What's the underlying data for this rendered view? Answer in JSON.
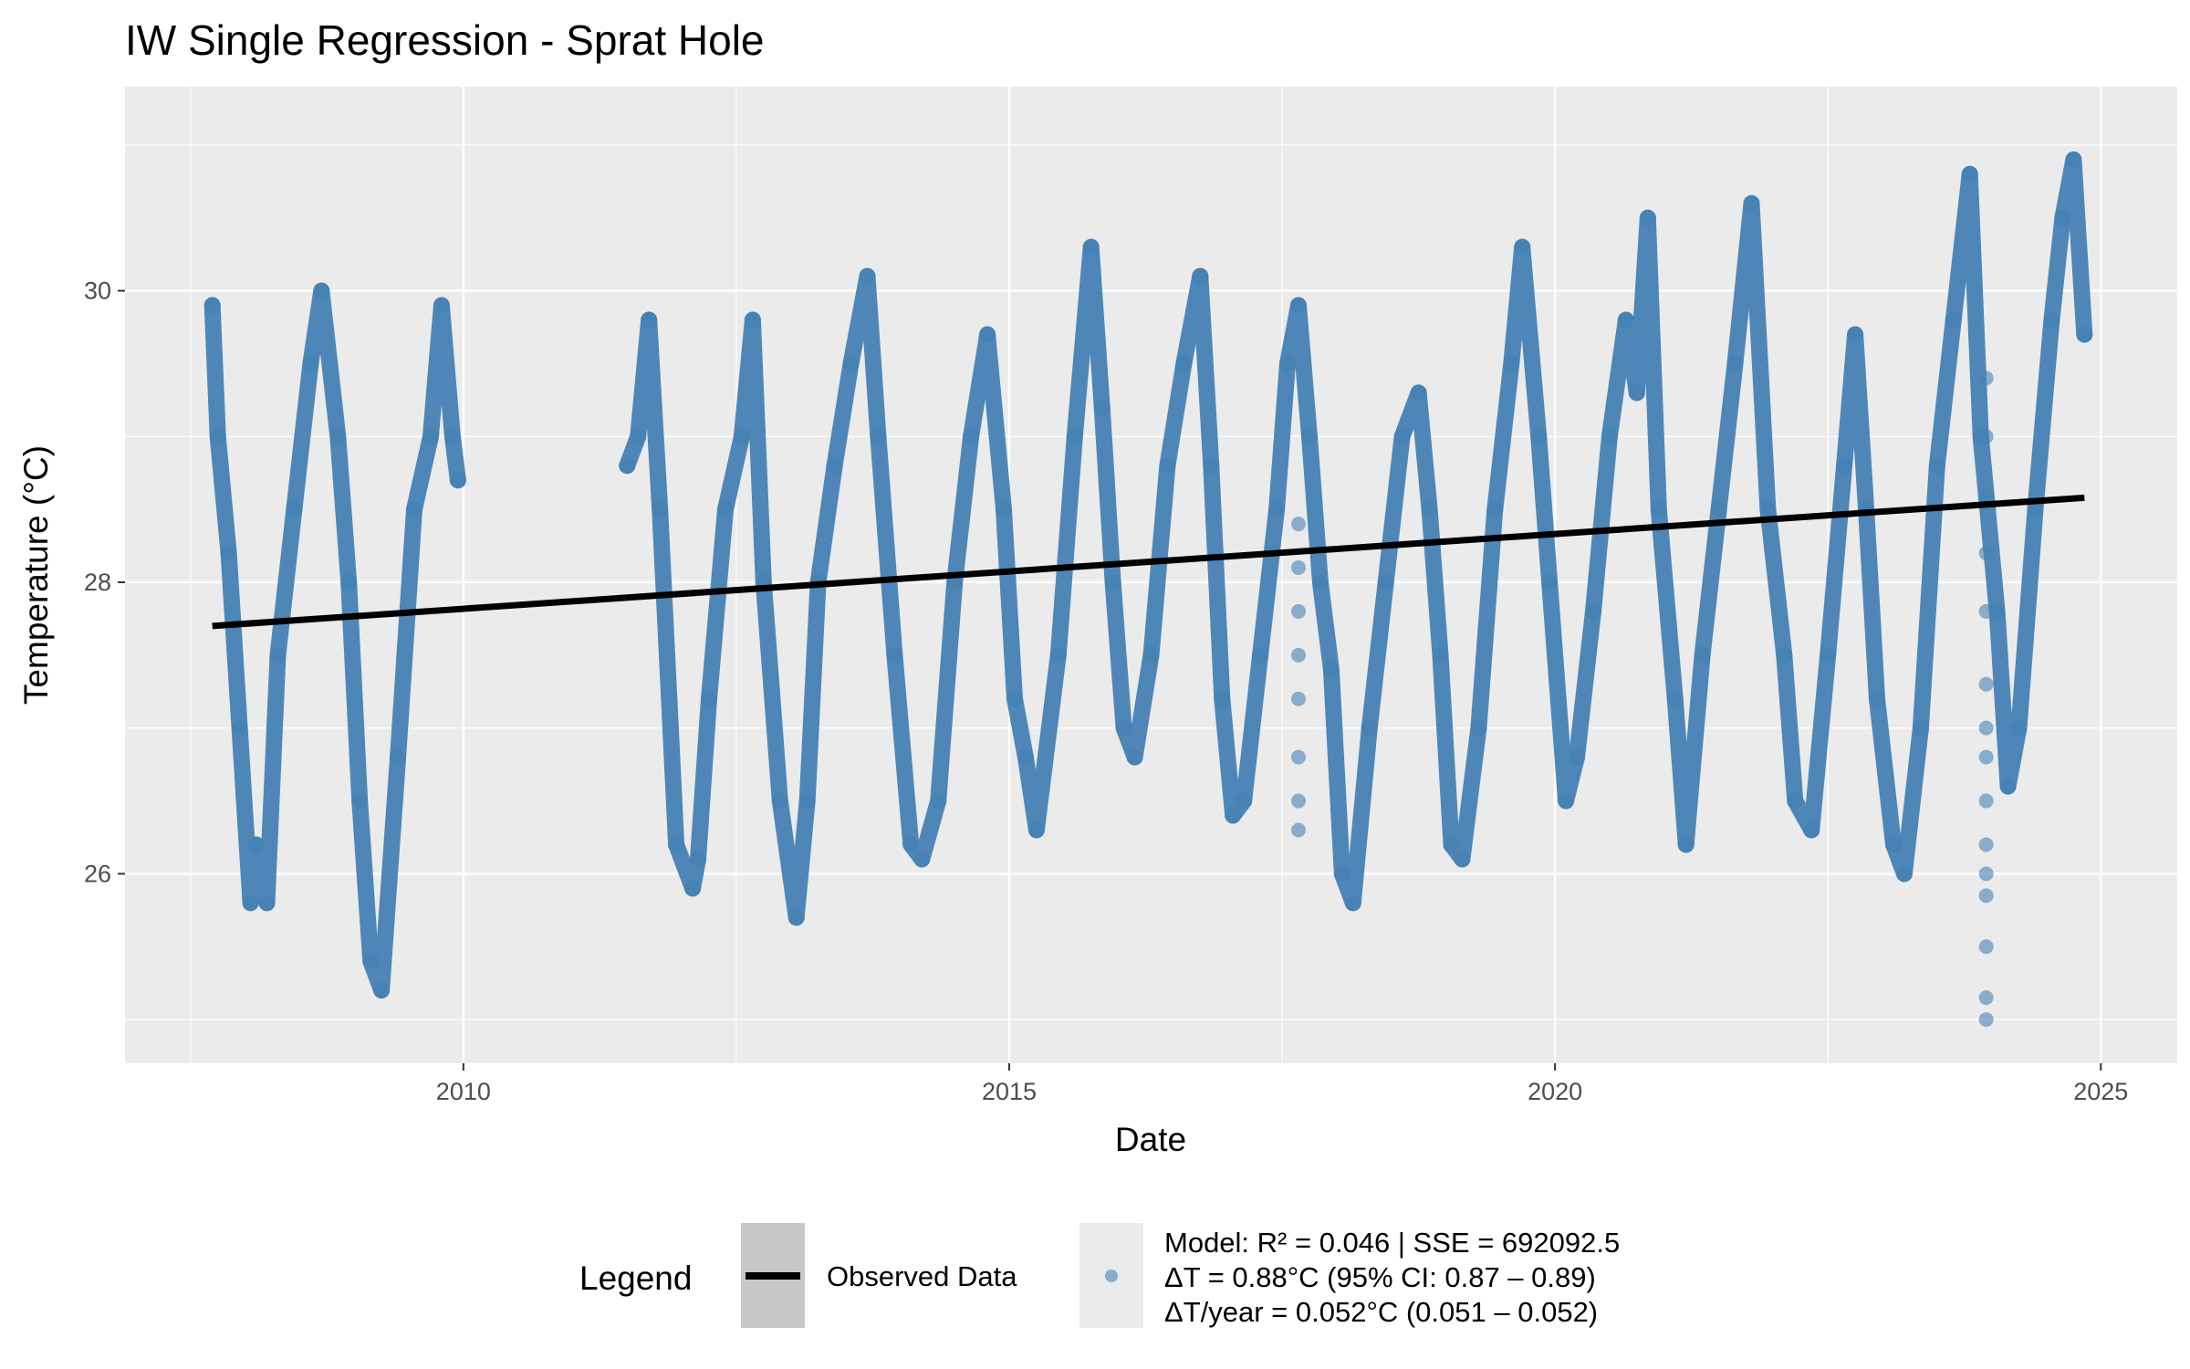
{
  "chart_data": {
    "type": "scatter",
    "title": "IW Single Regression - Sprat Hole",
    "xlabel": "Date",
    "ylabel": "Temperature (°C)",
    "xlim": [
      2006.9,
      2025.7
    ],
    "ylim": [
      24.7,
      31.4
    ],
    "x_ticks": [
      2010,
      2015,
      2020,
      2025
    ],
    "x_tick_labels": [
      "2010",
      "2015",
      "2020",
      "2025"
    ],
    "y_ticks": [
      26,
      28,
      30
    ],
    "y_tick_labels": [
      "26",
      "28",
      "30"
    ],
    "grid": true,
    "legend_position": "bottom",
    "colors": {
      "points": "#4682B4",
      "line": "#000000",
      "panel": "#EBEBEB",
      "grid": "#FFFFFF"
    },
    "series": [
      {
        "name": "Observed Data",
        "type": "line",
        "x": [
          2007.7,
          2024.85
        ],
        "y": [
          27.7,
          28.58
        ]
      },
      {
        "name": "Model: R² = 0.046 | SSE = 692092.5\nΔT = 0.88°C (95% CI: 0.87 – 0.89)\nΔT/year = 0.052°C (0.051 – 0.052)",
        "type": "scatter",
        "x": [
          2007.7,
          2007.75,
          2007.85,
          2007.95,
          2008.05,
          2008.1,
          2008.2,
          2008.3,
          2008.45,
          2008.6,
          2008.7,
          2008.85,
          2008.95,
          2009.05,
          2009.15,
          2009.25,
          2009.4,
          2009.55,
          2009.7,
          2009.8,
          2009.9,
          2009.95,
          2011.5,
          2011.6,
          2011.7,
          2011.8,
          2011.95,
          2012.1,
          2012.15,
          2012.25,
          2012.4,
          2012.55,
          2012.65,
          2012.75,
          2012.9,
          2013.05,
          2013.15,
          2013.25,
          2013.4,
          2013.55,
          2013.7,
          2013.8,
          2013.95,
          2014.1,
          2014.2,
          2014.35,
          2014.5,
          2014.65,
          2014.8,
          2014.95,
          2015.05,
          2015.15,
          2015.25,
          2015.45,
          2015.6,
          2015.75,
          2015.85,
          2015.95,
          2016.05,
          2016.15,
          2016.3,
          2016.45,
          2016.6,
          2016.75,
          2016.85,
          2016.95,
          2017.05,
          2017.15,
          2017.3,
          2017.45,
          2017.55,
          2017.65,
          2017.75,
          2017.85,
          2017.95,
          2018.05,
          2018.15,
          2018.3,
          2018.45,
          2018.6,
          2018.75,
          2018.85,
          2018.95,
          2019.05,
          2019.15,
          2019.3,
          2019.45,
          2019.6,
          2019.7,
          2019.85,
          2019.95,
          2020.1,
          2020.2,
          2020.35,
          2020.5,
          2020.65,
          2020.75,
          2020.85,
          2020.95,
          2021.1,
          2021.2,
          2021.35,
          2021.5,
          2021.65,
          2021.8,
          2021.95,
          2022.1,
          2022.2,
          2022.35,
          2022.5,
          2022.65,
          2022.75,
          2022.85,
          2022.95,
          2023.1,
          2023.2,
          2023.35,
          2023.5,
          2023.65,
          2023.8,
          2023.9,
          2024.05,
          2024.15,
          2024.25,
          2024.4,
          2024.55,
          2024.65,
          2024.75,
          2024.85
        ],
        "y": [
          29.9,
          29.0,
          28.2,
          27.0,
          25.8,
          26.2,
          25.8,
          27.5,
          28.5,
          29.5,
          30.0,
          29.0,
          28.0,
          26.5,
          25.4,
          25.2,
          26.8,
          28.5,
          29.0,
          29.9,
          29.0,
          28.7,
          28.8,
          29.0,
          29.8,
          28.5,
          26.2,
          25.9,
          26.1,
          27.2,
          28.5,
          29.0,
          29.8,
          28.0,
          26.5,
          25.7,
          26.5,
          28.0,
          28.8,
          29.5,
          30.1,
          29.0,
          27.5,
          26.2,
          26.1,
          26.5,
          28.0,
          29.0,
          29.7,
          28.5,
          27.2,
          26.8,
          26.3,
          27.5,
          29.0,
          30.3,
          29.2,
          28.0,
          27.0,
          26.8,
          27.5,
          28.8,
          29.5,
          30.1,
          28.8,
          27.2,
          26.4,
          26.5,
          27.5,
          28.5,
          29.5,
          29.9,
          29.0,
          28.0,
          27.4,
          26.0,
          25.8,
          27.0,
          28.0,
          29.0,
          29.3,
          28.5,
          27.5,
          26.2,
          26.1,
          27.0,
          28.5,
          29.5,
          30.3,
          29.0,
          28.0,
          26.5,
          26.8,
          27.8,
          29.0,
          29.8,
          29.3,
          30.5,
          28.5,
          27.2,
          26.2,
          27.5,
          28.5,
          29.5,
          30.6,
          28.5,
          27.5,
          26.5,
          26.3,
          27.5,
          28.8,
          29.7,
          28.5,
          27.2,
          26.2,
          26.0,
          27.0,
          28.8,
          29.8,
          30.8,
          29.0,
          27.8,
          26.6,
          27.0,
          28.5,
          29.8,
          30.5,
          30.9,
          29.7
        ]
      }
    ],
    "outlier_points": {
      "x": [
        2017.65,
        2017.65,
        2017.65,
        2017.65,
        2017.65,
        2017.65,
        2017.65,
        2017.65,
        2023.95,
        2023.95,
        2023.95,
        2023.95,
        2023.95,
        2023.95,
        2023.95,
        2023.95,
        2023.95,
        2023.95,
        2023.95,
        2023.95,
        2023.95,
        2023.95,
        2023.95
      ],
      "y": [
        26.3,
        26.5,
        26.8,
        27.2,
        27.5,
        27.8,
        28.1,
        28.4,
        25.0,
        25.15,
        25.5,
        25.85,
        26.0,
        26.2,
        26.5,
        26.8,
        27.0,
        27.3,
        27.8,
        28.2,
        28.6,
        29.0,
        29.4
      ]
    },
    "legend": {
      "title": "Legend",
      "line_label": "Observed Data",
      "point_label_lines": [
        "Model: R² = 0.046 | SSE = 692092.5",
        "ΔT = 0.88°C (95% CI: 0.87 – 0.89)",
        "ΔT/year = 0.052°C (0.051 – 0.052)"
      ]
    }
  }
}
